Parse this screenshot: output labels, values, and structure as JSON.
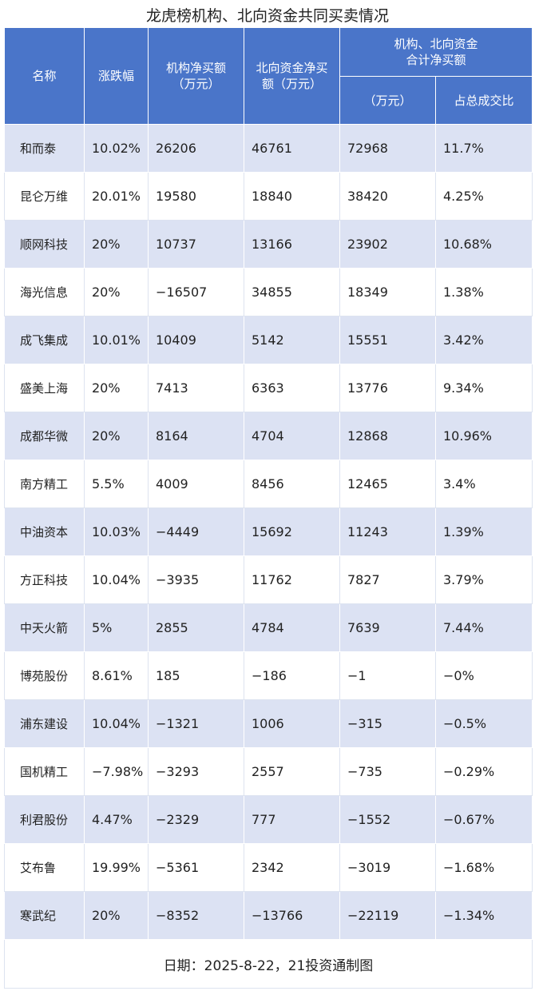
{
  "title": "龙虎榜机构、北向资金共同买卖情况",
  "header": {
    "name": "名称",
    "change": "涨跌幅",
    "inst_line1": "机构净买额",
    "inst_line2": "（万元）",
    "north_line1": "北向资金净买",
    "north_line2": "额（万元）",
    "group_line1": "机构、北向资金",
    "group_line2": "合计净买额",
    "sub_amount": "（万元）",
    "sub_ratio": "占总成交比"
  },
  "footer": "日期：2025-8-22，21投资通制图",
  "chart_data": {
    "type": "table",
    "title": "龙虎榜机构、北向资金共同买卖情况",
    "columns": [
      "名称",
      "涨跌幅",
      "机构净买额（万元）",
      "北向资金净买额（万元）",
      "机构、北向资金合计净买额（万元）",
      "机构、北向资金合计净买额占总成交比"
    ],
    "rows": [
      [
        "和而泰",
        "10.02%",
        "26206",
        "46761",
        "72968",
        "11.7%"
      ],
      [
        "昆仑万维",
        "20.01%",
        "19580",
        "18840",
        "38420",
        "4.25%"
      ],
      [
        "顺网科技",
        "20%",
        "10737",
        "13166",
        "23902",
        "10.68%"
      ],
      [
        "海光信息",
        "20%",
        "−16507",
        "34855",
        "18349",
        "1.38%"
      ],
      [
        "成飞集成",
        "10.01%",
        "10409",
        "5142",
        "15551",
        "3.42%"
      ],
      [
        "盛美上海",
        "20%",
        "7413",
        "6363",
        "13776",
        "9.34%"
      ],
      [
        "成都华微",
        "20%",
        "8164",
        "4704",
        "12868",
        "10.96%"
      ],
      [
        "南方精工",
        "5.5%",
        "4009",
        "8456",
        "12465",
        "3.4%"
      ],
      [
        "中油资本",
        "10.03%",
        "−4449",
        "15692",
        "11243",
        "1.39%"
      ],
      [
        "方正科技",
        "10.04%",
        "−3935",
        "11762",
        "7827",
        "3.79%"
      ],
      [
        "中天火箭",
        "5%",
        "2855",
        "4784",
        "7639",
        "7.44%"
      ],
      [
        "博苑股份",
        "8.61%",
        "185",
        "−186",
        "−1",
        "−0%"
      ],
      [
        "浦东建设",
        "10.04%",
        "−1321",
        "1006",
        "−315",
        "−0.5%"
      ],
      [
        "国机精工",
        "−7.98%",
        "−3293",
        "2557",
        "−735",
        "−0.29%"
      ],
      [
        "利君股份",
        "4.47%",
        "−2329",
        "777",
        "−1552",
        "−0.67%"
      ],
      [
        "艾布鲁",
        "19.99%",
        "−5361",
        "2342",
        "−3019",
        "−1.68%"
      ],
      [
        "寒武纪",
        "20%",
        "−8352",
        "−13766",
        "−22119",
        "−1.34%"
      ]
    ]
  }
}
